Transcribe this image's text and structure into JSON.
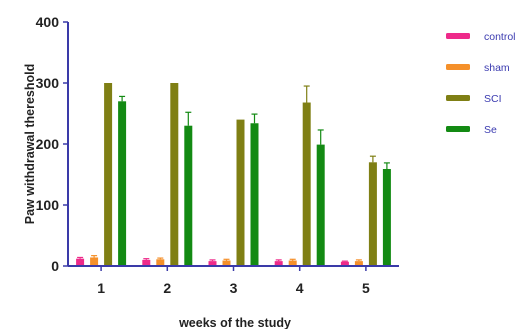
{
  "chart_data": {
    "type": "bar",
    "xlabel": "weeks of the study",
    "ylabel": "Paw withdrawal thereshold",
    "ylim": [
      0,
      400
    ],
    "yticks": [
      0,
      100,
      200,
      300,
      400
    ],
    "categories": [
      "1",
      "2",
      "3",
      "4",
      "5"
    ],
    "grid": false,
    "legend_position": "right",
    "series": [
      {
        "name": "control",
        "color": "#ee2a8a",
        "values": [
          12,
          10,
          8,
          8,
          7
        ],
        "errors": [
          2,
          2,
          2,
          2,
          1
        ]
      },
      {
        "name": "sham",
        "color": "#f5902a",
        "values": [
          14,
          11,
          9,
          9,
          8
        ],
        "errors": [
          3,
          2,
          2,
          2,
          2
        ]
      },
      {
        "name": "SCI",
        "color": "#7f7f14",
        "values": [
          300,
          300,
          240,
          268,
          170
        ],
        "errors": [
          0,
          0,
          0,
          27,
          10
        ]
      },
      {
        "name": "Se",
        "color": "#138a13",
        "values": [
          270,
          230,
          234,
          199,
          159
        ],
        "errors": [
          8,
          22,
          15,
          24,
          10
        ]
      }
    ]
  }
}
